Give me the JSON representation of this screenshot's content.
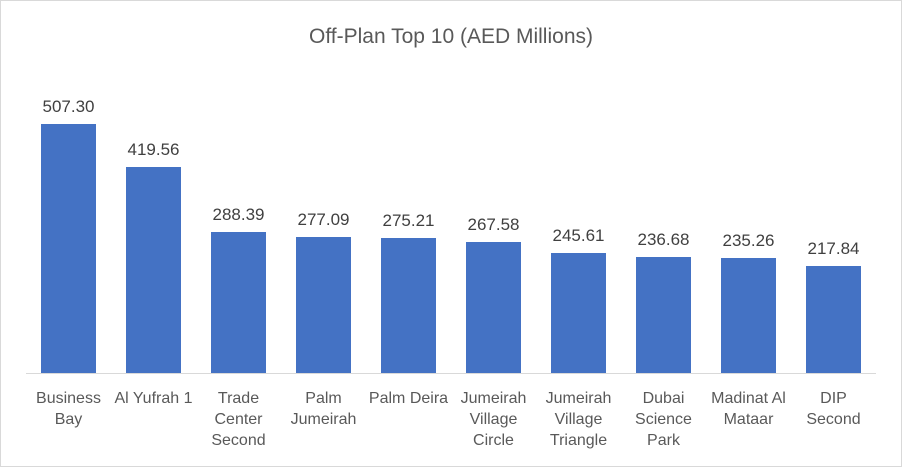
{
  "chart_data": {
    "type": "bar",
    "title": "Off-Plan Top 10 (AED Millions)",
    "categories": [
      "Business Bay",
      "Al Yufrah 1",
      "Trade Center Second",
      "Palm Jumeirah",
      "Palm Deira",
      "Jumeirah Village Circle",
      "Jumeirah Village Triangle",
      "Dubai Science Park",
      "Madinat Al Mataar",
      "DIP Second"
    ],
    "values": [
      507.3,
      419.56,
      288.39,
      277.09,
      275.21,
      267.58,
      245.61,
      236.68,
      235.26,
      217.84
    ],
    "data_labels": [
      "507.30",
      "419.56",
      "288.39",
      "277.09",
      "275.21",
      "267.58",
      "245.61",
      "236.68",
      "235.26",
      "217.84"
    ],
    "tick_label_lines": [
      [
        "Business",
        "Bay"
      ],
      [
        "Al Yufrah 1"
      ],
      [
        "Trade",
        "Center",
        "Second"
      ],
      [
        "Palm",
        "Jumeirah"
      ],
      [
        "Palm Deira"
      ],
      [
        "Jumeirah",
        "Village",
        "Circle"
      ],
      [
        "Jumeirah",
        "Village",
        "Triangle"
      ],
      [
        "Dubai",
        "Science",
        "Park"
      ],
      [
        "Madinat Al",
        "Mataar"
      ],
      [
        "DIP",
        "Second"
      ]
    ],
    "xlabel": "",
    "ylabel": "",
    "ylim": [
      0,
      600
    ],
    "grid": false,
    "legend": false
  },
  "colors": {
    "bar": "#4472C4",
    "title_text": "#595959",
    "data_label_text": "#404040",
    "tick_label_text": "#595959",
    "axis_line": "#D9D9D9",
    "frame_border": "#D9D9D9",
    "background": "#FFFFFF"
  }
}
